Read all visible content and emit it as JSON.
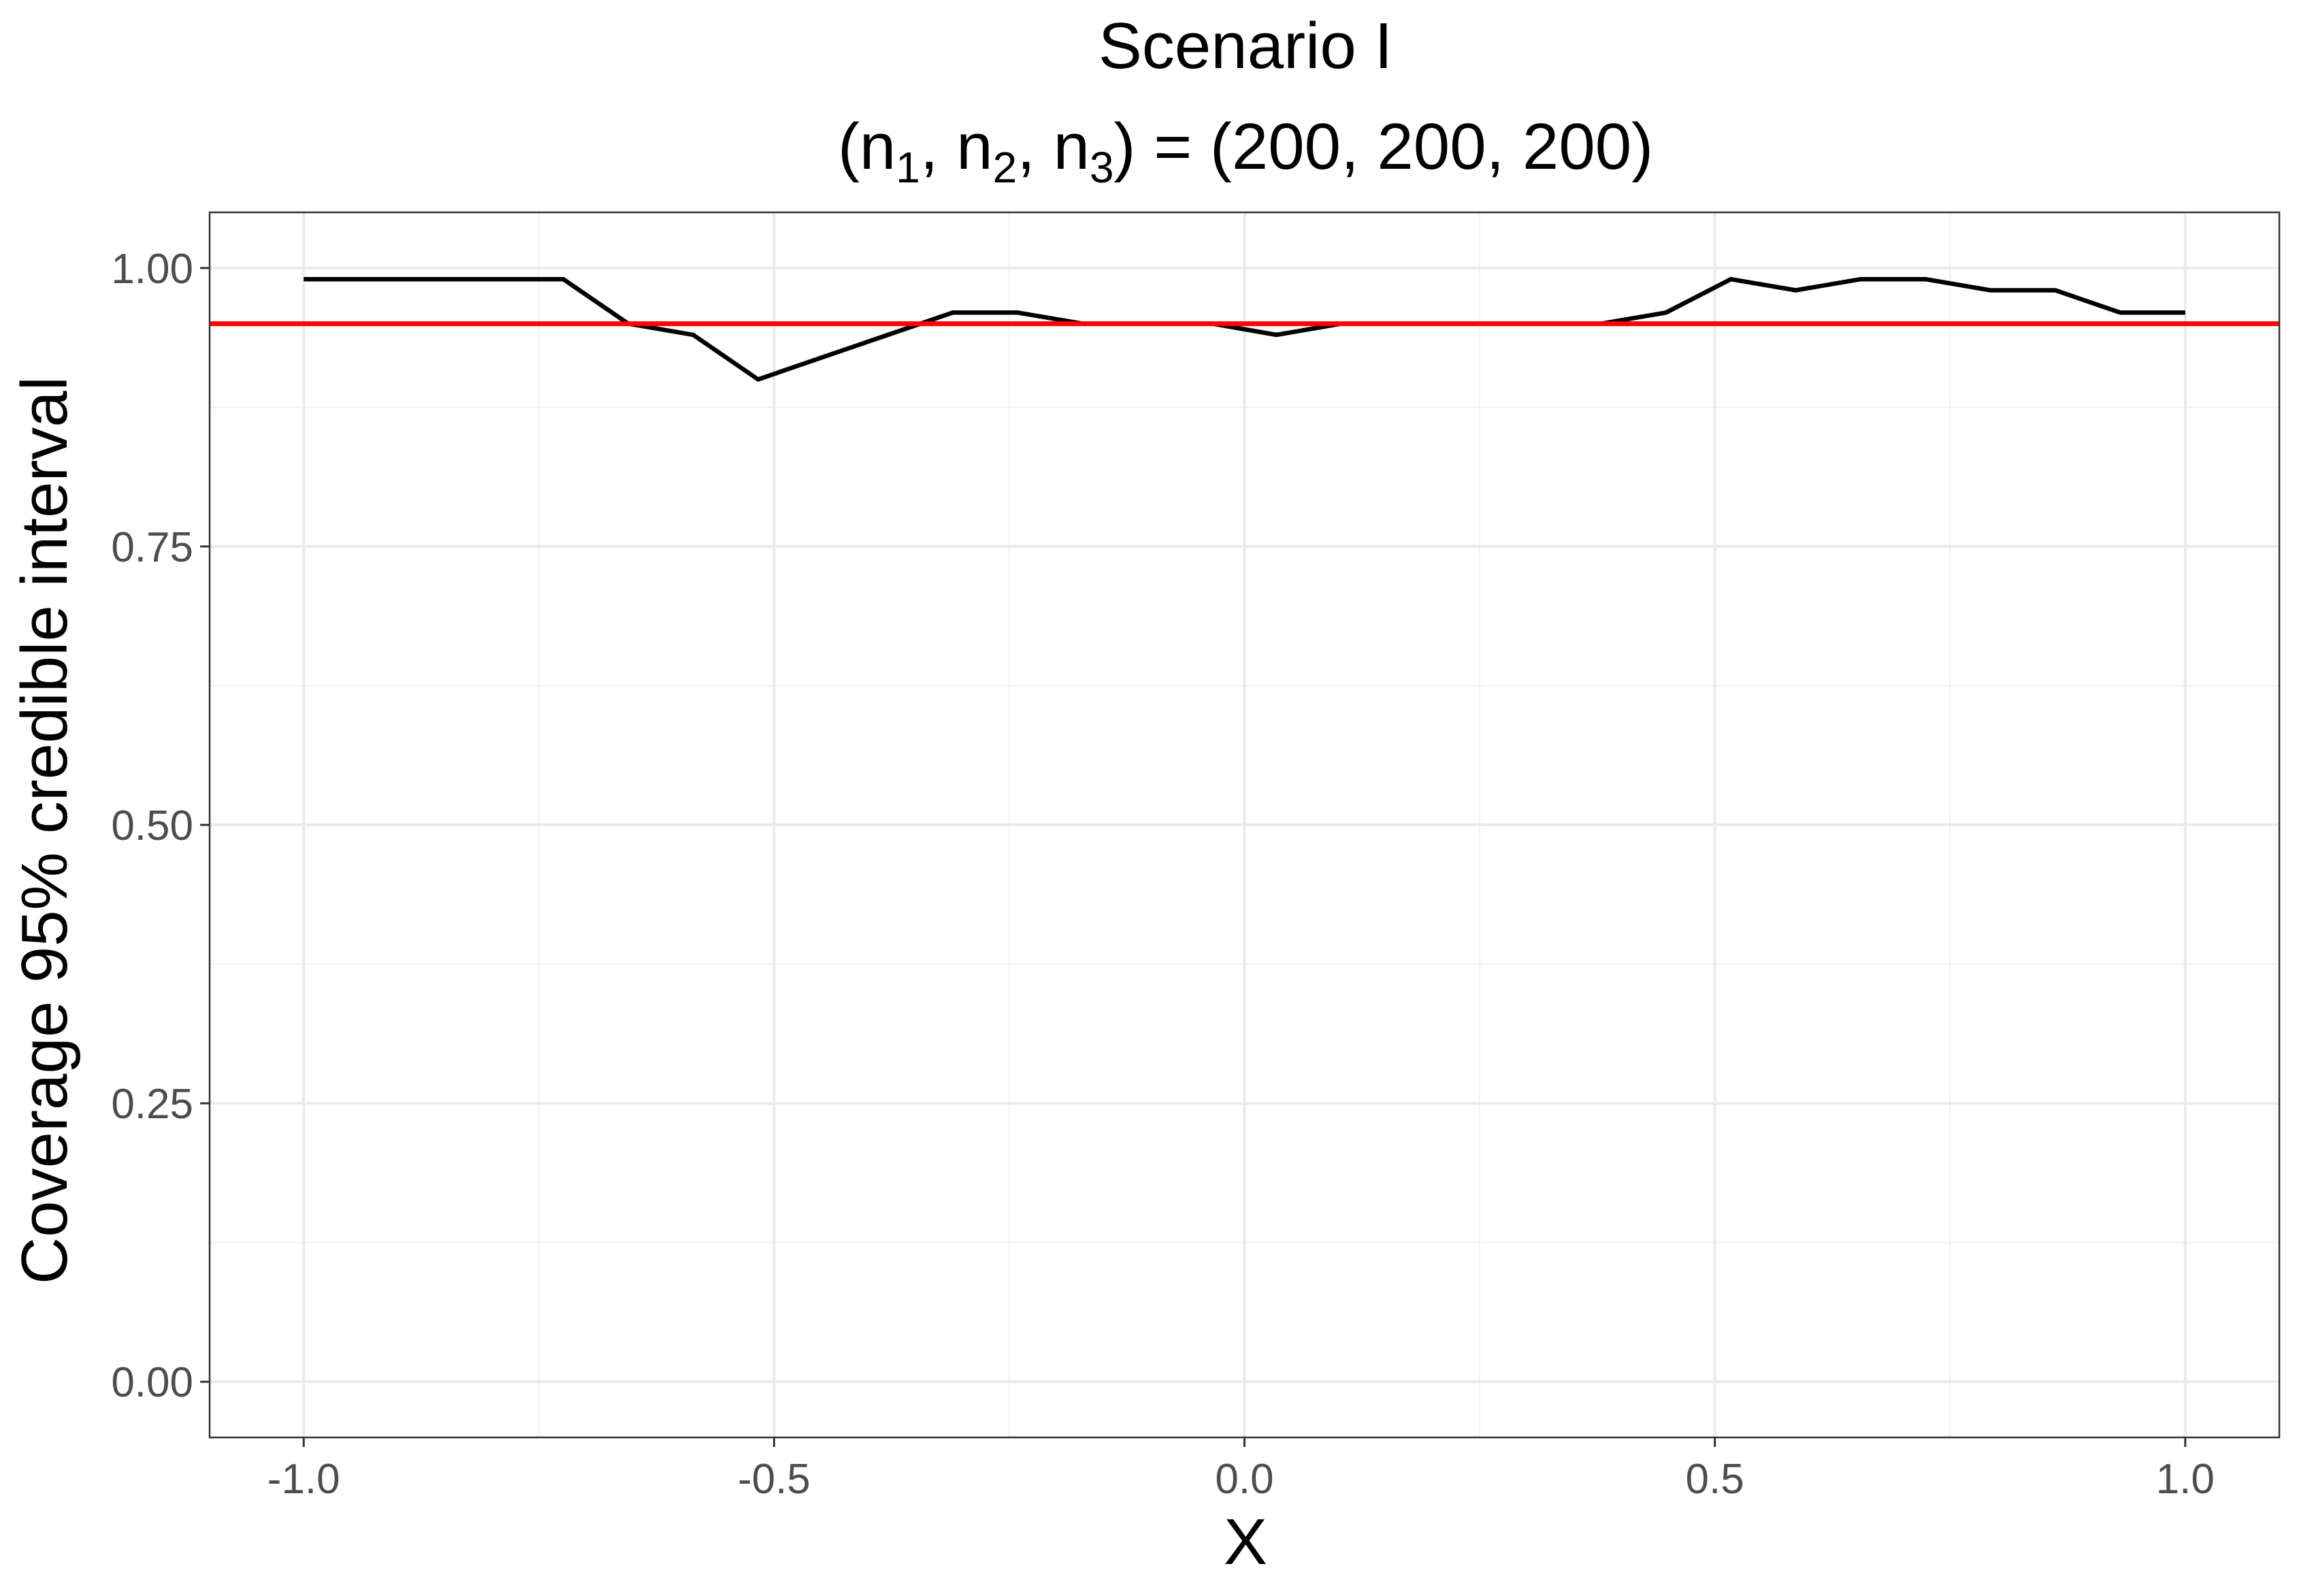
{
  "chart_data": {
    "type": "line",
    "title": "Scenario I",
    "subtitle": {
      "prefix": "(n",
      "sub1": "1",
      "sep1": ", n",
      "sub2": "2",
      "sep2": ", n",
      "sub3": "3",
      "suffix": ") = (200, 200, 200)"
    },
    "xlabel": "X",
    "ylabel": "Coverage 95% credible interval",
    "xlim": [
      -1.1,
      1.1
    ],
    "ylim": [
      -0.05,
      1.05
    ],
    "x_ticks": [
      -1.0,
      -0.5,
      0.0,
      0.5,
      1.0
    ],
    "x_tick_labels": [
      "-1.0",
      "-0.5",
      "0.0",
      "0.5",
      "1.0"
    ],
    "y_ticks": [
      0.0,
      0.25,
      0.5,
      0.75,
      1.0
    ],
    "y_tick_labels": [
      "0.00",
      "0.25",
      "0.50",
      "0.75",
      "1.00"
    ],
    "grid": true,
    "series": [
      {
        "color": "#000000",
        "x": [
          -1.0,
          -0.931,
          -0.862,
          -0.793,
          -0.724,
          -0.655,
          -0.586,
          -0.517,
          -0.448,
          -0.379,
          -0.31,
          -0.241,
          -0.172,
          -0.103,
          -0.034,
          0.034,
          0.103,
          0.172,
          0.241,
          0.31,
          0.379,
          0.448,
          0.517,
          0.586,
          0.655,
          0.724,
          0.793,
          0.862,
          0.931,
          1.0
        ],
        "y": [
          0.99,
          0.99,
          0.99,
          0.99,
          0.99,
          0.95,
          0.94,
          0.9,
          0.92,
          0.94,
          0.96,
          0.96,
          0.95,
          0.95,
          0.95,
          0.94,
          0.95,
          0.95,
          0.95,
          0.95,
          0.95,
          0.96,
          0.99,
          0.98,
          0.99,
          0.99,
          0.98,
          0.98,
          0.96,
          0.96
        ]
      }
    ],
    "reference_line": {
      "y": 0.95,
      "color": "#ff0000"
    }
  }
}
